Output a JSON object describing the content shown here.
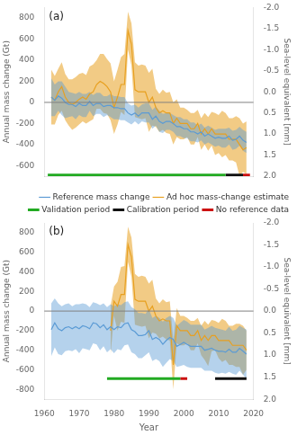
{
  "chart_data": [
    {
      "type": "line",
      "y_label": "Annual mass change (Gt)",
      "y2_label": "Sea-level equivalent [mm]",
      "annotations": [
        "(a)"
      ],
      "x": [
        1962,
        1963,
        1964,
        1965,
        1966,
        1967,
        1968,
        1969,
        1970,
        1971,
        1972,
        1973,
        1974,
        1975,
        1976,
        1977,
        1978,
        1979,
        1980,
        1981,
        1982,
        1983,
        1984,
        1985,
        1986,
        1987,
        1988,
        1989,
        1990,
        1991,
        1992,
        1993,
        1994,
        1995,
        1996,
        1997,
        1998,
        1999,
        2000,
        2001,
        2002,
        2003,
        2004,
        2005,
        2006,
        2007,
        2008,
        2009,
        2010,
        2011,
        2012,
        2013,
        2014,
        2015,
        2016,
        2017,
        2018
      ],
      "xlim": [
        1960,
        2020
      ],
      "xticks": [
        1960,
        1970,
        1980,
        1990,
        2000,
        2010,
        2020
      ],
      "ylim": [
        -700,
        900
      ],
      "yticks": [
        -600,
        -400,
        -200,
        0,
        200,
        400,
        600,
        800
      ],
      "y2lim": [
        2.0,
        -2.0
      ],
      "y2ticks": [
        {
          "value": -2.0,
          "label": "-2.0"
        },
        {
          "value": -1.5,
          "label": "-1.5"
        },
        {
          "value": -1.0,
          "label": "-1.0"
        },
        {
          "value": -0.5,
          "label": "-0.5"
        },
        {
          "value": 0.0,
          "label": "0.0"
        },
        {
          "value": 0.5,
          "label": "0.5"
        },
        {
          "value": 1.0,
          "label": "1.0"
        },
        {
          "value": 1.5,
          "label": "1.5"
        },
        {
          "value": 2.0,
          "label": "2.0"
        }
      ],
      "grid": false,
      "tick_labels": "y",
      "hline": 0,
      "series": [
        {
          "name": "Reference mass change",
          "color": "#5B9BD5",
          "values": [
            50,
            20,
            60,
            40,
            0,
            -20,
            -20,
            -40,
            -10,
            -30,
            -30,
            10,
            -30,
            -10,
            -10,
            -40,
            -30,
            -30,
            -50,
            -50,
            -60,
            -60,
            -100,
            -120,
            -100,
            -130,
            -100,
            -100,
            -100,
            -160,
            -130,
            -180,
            -200,
            -180,
            -180,
            -200,
            -230,
            -230,
            -250,
            -250,
            -280,
            -280,
            -300,
            -280,
            -320,
            -300,
            -320,
            -340,
            -330,
            -340,
            -340,
            -320,
            -360,
            -350,
            -320,
            -360,
            -380
          ],
          "high": [
            230,
            170,
            200,
            200,
            150,
            100,
            90,
            80,
            100,
            80,
            80,
            100,
            70,
            90,
            90,
            60,
            60,
            80,
            60,
            60,
            50,
            50,
            -10,
            -30,
            -20,
            -50,
            -20,
            -10,
            -10,
            -70,
            -40,
            -80,
            -110,
            -100,
            -100,
            -120,
            -140,
            -140,
            -160,
            -160,
            -190,
            -190,
            -220,
            -200,
            -240,
            -220,
            -240,
            -260,
            -250,
            -250,
            -250,
            -240,
            -270,
            -260,
            -230,
            -260,
            -280
          ],
          "low": [
            -130,
            -130,
            -80,
            -120,
            -150,
            -140,
            -130,
            -160,
            -120,
            -140,
            -140,
            -80,
            -130,
            -110,
            -110,
            -140,
            -120,
            -140,
            -160,
            -160,
            -170,
            -170,
            -190,
            -210,
            -180,
            -210,
            -180,
            -190,
            -190,
            -250,
            -220,
            -280,
            -290,
            -260,
            -260,
            -280,
            -320,
            -320,
            -340,
            -340,
            -370,
            -370,
            -380,
            -360,
            -400,
            -380,
            -400,
            -420,
            -410,
            -430,
            -430,
            -400,
            -450,
            -440,
            -410,
            -460,
            -480
          ]
        },
        {
          "name": "Ad hoc mass-change estimate",
          "color": "#E8A020",
          "values": [
            50,
            20,
            100,
            150,
            50,
            0,
            -20,
            0,
            30,
            50,
            30,
            80,
            100,
            170,
            200,
            180,
            150,
            100,
            -50,
            50,
            170,
            170,
            680,
            550,
            120,
            100,
            100,
            100,
            0,
            50,
            -50,
            -100,
            -80,
            -100,
            -100,
            -200,
            -150,
            -200,
            -200,
            -200,
            -250,
            -250,
            -200,
            -300,
            -250,
            -300,
            -250,
            -300,
            -300,
            -300,
            -300,
            -350,
            -350,
            -350,
            -400,
            -450,
            -430
          ],
          "high": [
            310,
            250,
            320,
            380,
            270,
            220,
            220,
            240,
            270,
            280,
            260,
            340,
            360,
            400,
            460,
            460,
            410,
            370,
            200,
            310,
            430,
            460,
            860,
            750,
            380,
            350,
            360,
            350,
            280,
            320,
            130,
            80,
            120,
            90,
            100,
            0,
            30,
            -50,
            -50,
            -70,
            -100,
            -100,
            -70,
            -150,
            -100,
            -140,
            -90,
            -100,
            -120,
            -80,
            -100,
            -150,
            -150,
            -130,
            -150,
            -200,
            -180
          ],
          "low": [
            -210,
            -210,
            -120,
            -80,
            -170,
            -220,
            -260,
            -240,
            -210,
            -180,
            -200,
            -180,
            -160,
            -60,
            -60,
            -100,
            -110,
            -170,
            -300,
            -210,
            -90,
            -120,
            500,
            350,
            -140,
            -150,
            -160,
            -150,
            -280,
            -220,
            -230,
            -280,
            -260,
            -290,
            -300,
            -400,
            -330,
            -350,
            -350,
            -330,
            -400,
            -400,
            -330,
            -450,
            -400,
            -460,
            -410,
            -500,
            -480,
            -520,
            -500,
            -550,
            -550,
            -570,
            -700,
            -660,
            -680
          ]
        },
        {
          "name": "Validation period",
          "color": "#22AA22",
          "x": [
            1961,
            2012
          ],
          "values": [
            -690,
            -690
          ]
        },
        {
          "name": "Calibration period",
          "color": "#111111",
          "x": [
            2012,
            2017
          ],
          "values": [
            -690,
            -690
          ]
        },
        {
          "name": "No reference data",
          "color": "#CC1111",
          "x": [
            2017,
            2019
          ],
          "values": [
            -690,
            -690
          ]
        }
      ]
    },
    {
      "type": "line",
      "x_label": "Year",
      "y_label": "Annual mass change (Gt)",
      "y2_label": "Sea-level equivalent [mm]",
      "annotations": [
        "(b)"
      ],
      "legend": "upper right",
      "x": [
        1962,
        1963,
        1964,
        1965,
        1966,
        1967,
        1968,
        1969,
        1970,
        1971,
        1972,
        1973,
        1974,
        1975,
        1976,
        1977,
        1978,
        1979,
        1980,
        1981,
        1982,
        1983,
        1984,
        1985,
        1986,
        1987,
        1988,
        1989,
        1990,
        1991,
        1992,
        1993,
        1994,
        1995,
        1996,
        1997,
        1998,
        1999,
        2000,
        2001,
        2002,
        2003,
        2004,
        2005,
        2006,
        2007,
        2008,
        2009,
        2010,
        2011,
        2012,
        2013,
        2014,
        2015,
        2016,
        2017,
        2018
      ],
      "xlim": [
        1960,
        2020
      ],
      "xticks": [
        1960,
        1970,
        1980,
        1990,
        2000,
        2010,
        2020
      ],
      "ylim": [
        -900,
        900
      ],
      "yticks": [
        -800,
        -600,
        -400,
        -200,
        0,
        200,
        400,
        600,
        800
      ],
      "y2lim": [
        2.0,
        -2.0
      ],
      "y2ticks": [
        {
          "value": -2.0,
          "label": "-2.0"
        },
        {
          "value": -1.5,
          "label": "-1.5"
        },
        {
          "value": -1.0,
          "label": "-1.0"
        },
        {
          "value": -0.5,
          "label": "-0.5"
        },
        {
          "value": 0.0,
          "label": "0.0"
        },
        {
          "value": 0.5,
          "label": "0.5"
        },
        {
          "value": 1.0,
          "label": "1.0"
        },
        {
          "value": 1.5,
          "label": "1.5"
        },
        {
          "value": 2.0,
          "label": "2.0"
        }
      ],
      "grid": false,
      "hline": 0,
      "series": [
        {
          "name": "Reference mass change",
          "color": "#5B9BD5",
          "values": [
            -190,
            -120,
            -180,
            -200,
            -170,
            -160,
            -180,
            -160,
            -180,
            -150,
            -160,
            -180,
            -120,
            -130,
            -170,
            -140,
            -190,
            -160,
            -190,
            -160,
            -170,
            -130,
            -120,
            -190,
            -210,
            -250,
            -250,
            -240,
            -200,
            -290,
            -270,
            -290,
            -340,
            -300,
            -270,
            -290,
            -360,
            -340,
            -320,
            -340,
            -360,
            -360,
            -360,
            -360,
            -400,
            -390,
            -380,
            -400,
            -410,
            -410,
            -420,
            -390,
            -420,
            -420,
            -380,
            -410,
            -440
          ],
          "high": [
            80,
            130,
            80,
            50,
            70,
            80,
            50,
            70,
            70,
            80,
            70,
            40,
            90,
            80,
            60,
            80,
            40,
            70,
            50,
            70,
            60,
            90,
            100,
            40,
            20,
            -20,
            -20,
            -30,
            20,
            -70,
            -50,
            -70,
            -110,
            -70,
            -50,
            -70,
            -150,
            -120,
            -90,
            -110,
            -140,
            -140,
            -140,
            -140,
            -190,
            -170,
            -150,
            -170,
            -180,
            -190,
            -200,
            -160,
            -200,
            -190,
            -150,
            -170,
            -190
          ],
          "low": [
            -460,
            -370,
            -440,
            -450,
            -410,
            -400,
            -410,
            -390,
            -430,
            -380,
            -390,
            -400,
            -330,
            -340,
            -400,
            -360,
            -420,
            -390,
            -430,
            -390,
            -400,
            -350,
            -340,
            -420,
            -440,
            -480,
            -480,
            -450,
            -420,
            -510,
            -490,
            -510,
            -570,
            -530,
            -490,
            -510,
            -570,
            -560,
            -550,
            -570,
            -580,
            -580,
            -580,
            -580,
            -610,
            -610,
            -610,
            -630,
            -640,
            -630,
            -640,
            -620,
            -640,
            -650,
            -610,
            -650,
            -690
          ]
        },
        {
          "name": "Ad hoc mass-change estimate",
          "color": "#E8A020",
          "values": [
            null,
            null,
            null,
            null,
            null,
            null,
            null,
            null,
            null,
            null,
            null,
            null,
            null,
            null,
            null,
            null,
            null,
            -200,
            100,
            50,
            170,
            170,
            680,
            550,
            120,
            100,
            100,
            100,
            0,
            50,
            -50,
            -100,
            -80,
            -100,
            -100,
            -550,
            -150,
            -200,
            -200,
            -200,
            -250,
            -250,
            -200,
            -300,
            -250,
            -300,
            -250,
            -250,
            -300,
            -300,
            -300,
            -300,
            -350,
            -350,
            -350,
            -350,
            -400
          ],
          "high": [
            null,
            null,
            null,
            null,
            null,
            null,
            null,
            null,
            null,
            null,
            null,
            null,
            null,
            null,
            null,
            null,
            null,
            50,
            250,
            300,
            450,
            460,
            860,
            750,
            380,
            350,
            360,
            350,
            280,
            320,
            130,
            80,
            120,
            90,
            100,
            -300,
            30,
            -50,
            -50,
            -70,
            -100,
            -100,
            -70,
            -150,
            -100,
            -140,
            -90,
            -100,
            -120,
            -80,
            -100,
            -150,
            -150,
            -130,
            -130,
            -150,
            -200
          ],
          "low": [
            null,
            null,
            null,
            null,
            null,
            null,
            null,
            null,
            null,
            null,
            null,
            null,
            null,
            null,
            null,
            null,
            null,
            -450,
            -50,
            -200,
            -110,
            -120,
            500,
            350,
            -140,
            -150,
            -160,
            -150,
            -280,
            -220,
            -230,
            -280,
            -260,
            -290,
            -300,
            -800,
            -330,
            -350,
            -350,
            -330,
            -400,
            -400,
            -330,
            -450,
            -500,
            -560,
            -410,
            -400,
            -480,
            -520,
            -500,
            -550,
            -550,
            -570,
            -570,
            -650,
            -600
          ]
        },
        {
          "name": "Validation period",
          "color": "#22AA22",
          "x": [
            1978,
            1999
          ],
          "values": [
            -690,
            -690
          ]
        },
        {
          "name": "Calibration period",
          "color": "#111111",
          "x": [
            2009,
            2018
          ],
          "values": [
            -690,
            -690
          ]
        },
        {
          "name": "No reference data",
          "color": "#CC1111",
          "x": [
            1999,
            2001
          ],
          "values": [
            -690,
            -690
          ]
        }
      ]
    }
  ]
}
